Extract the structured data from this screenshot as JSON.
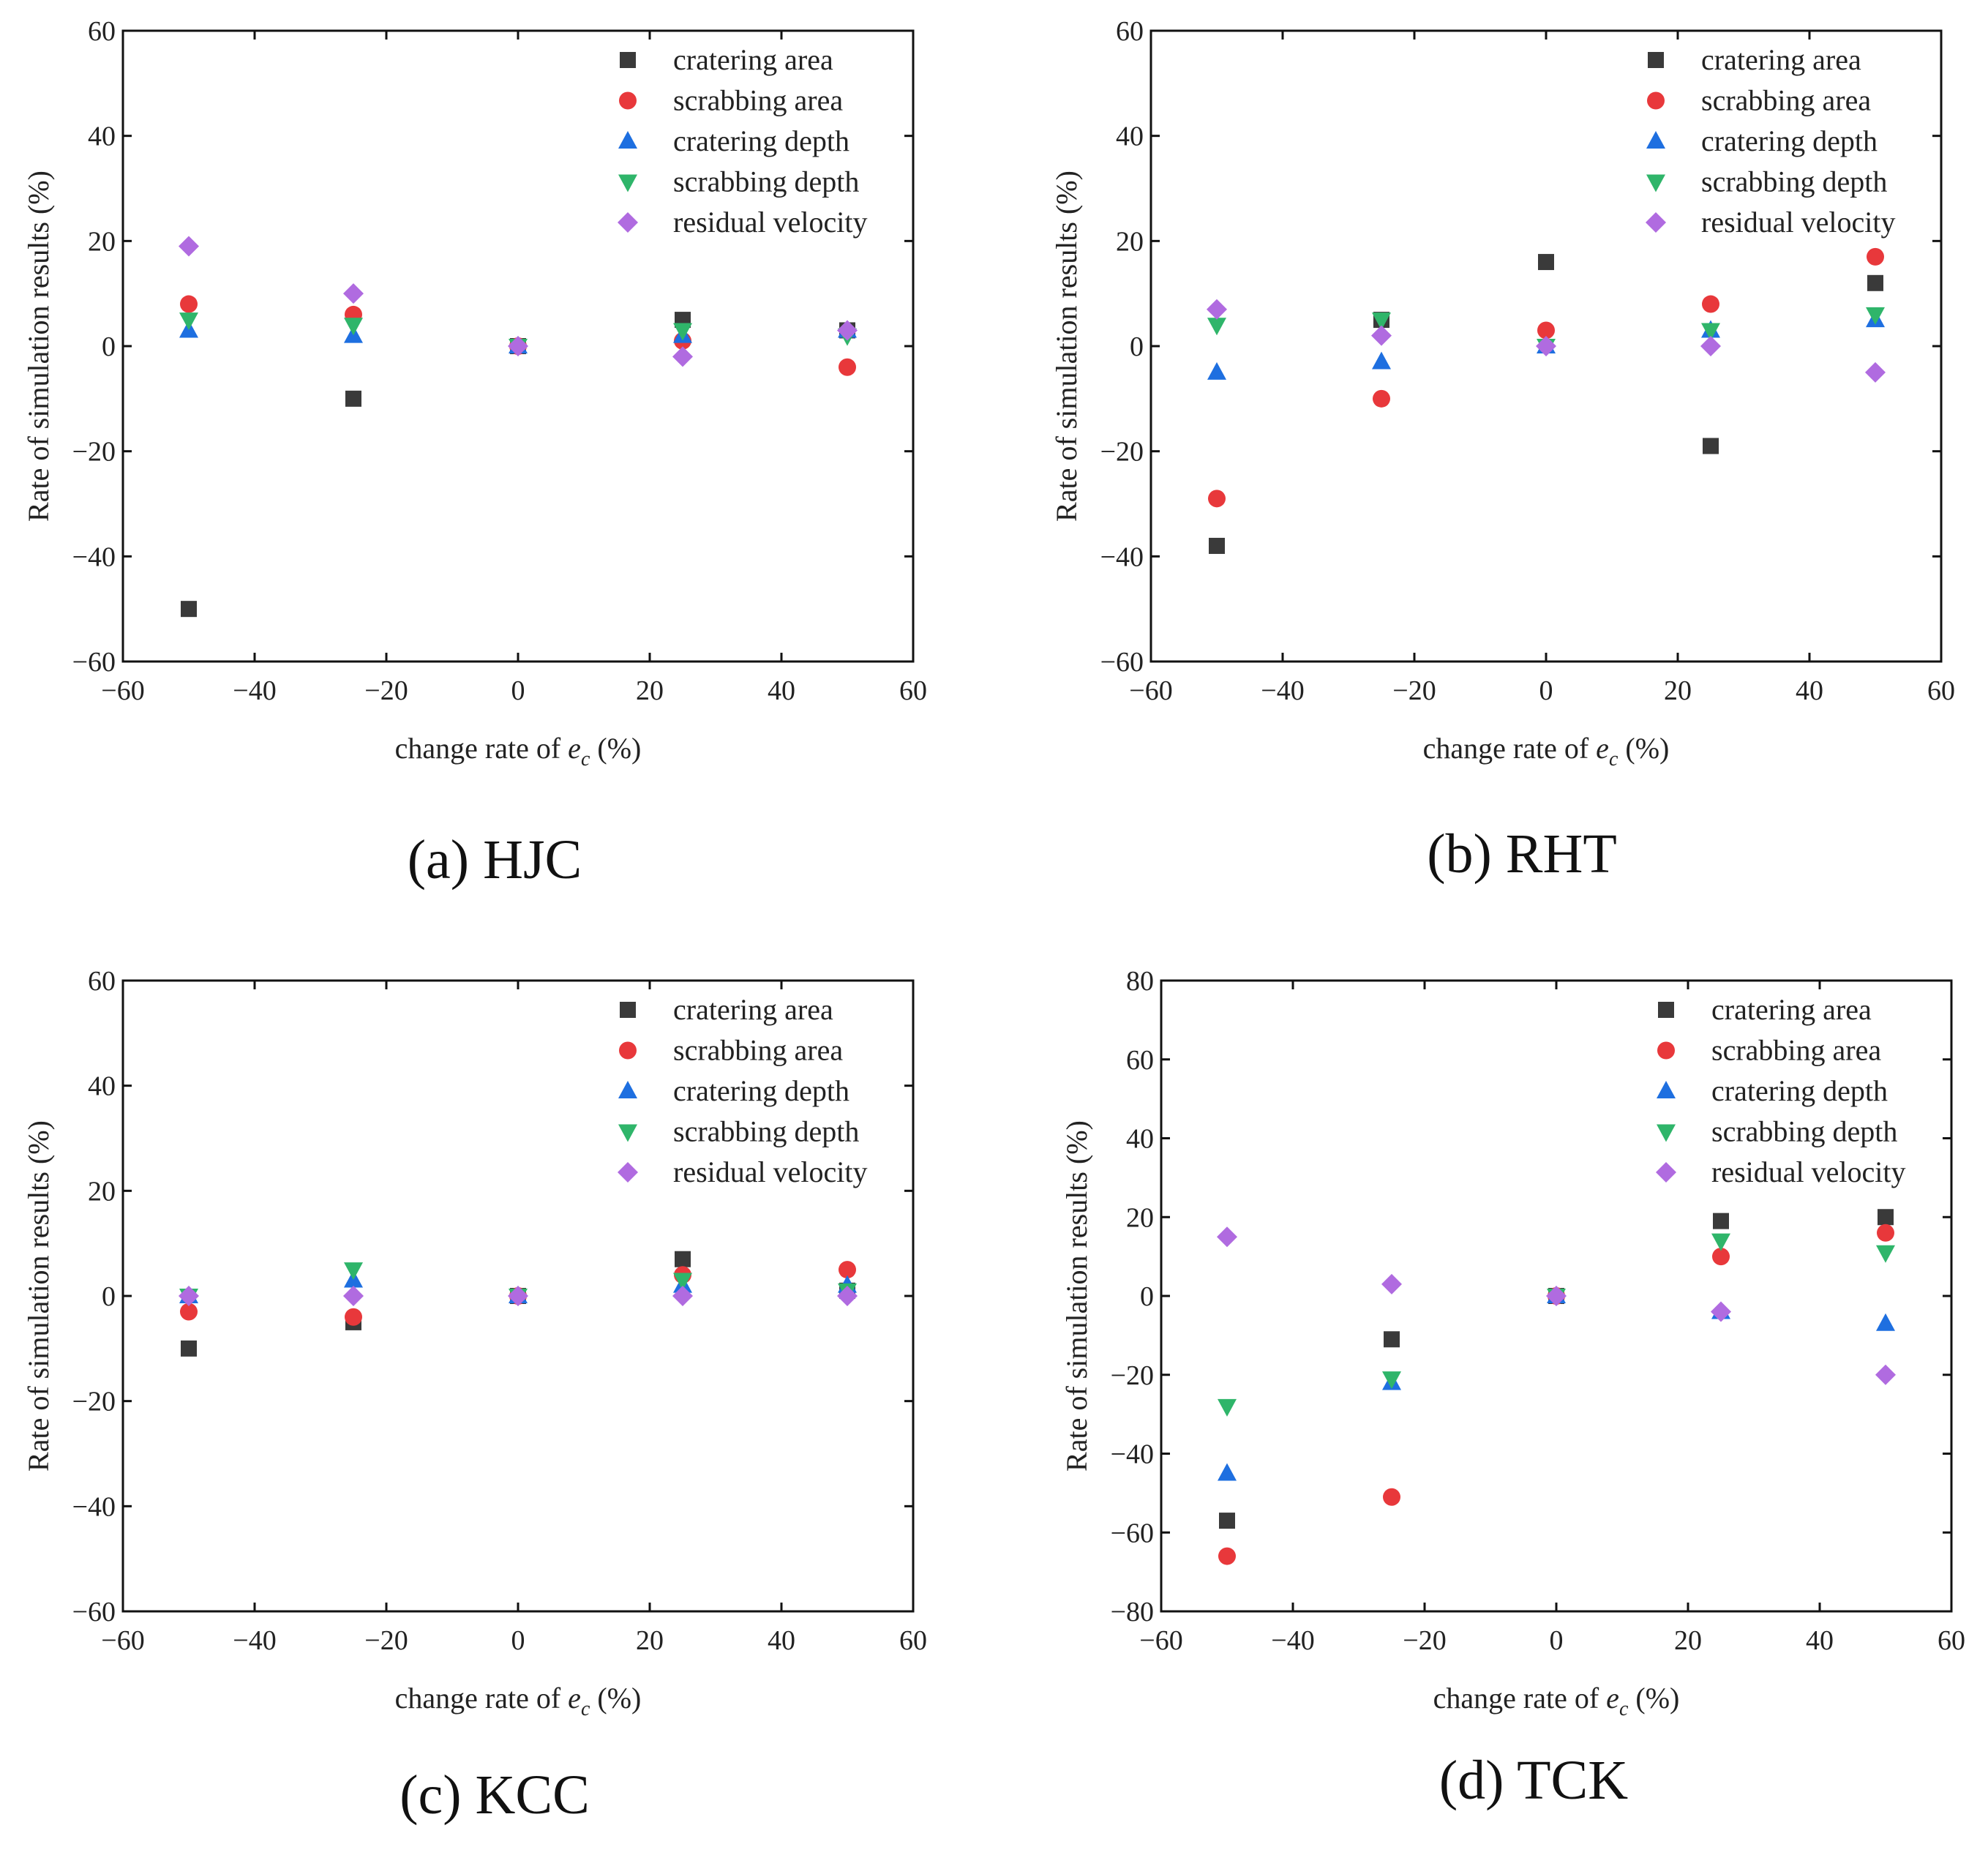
{
  "series_styles": [
    {
      "name": "cratering area",
      "color": "#3a3a3a",
      "marker": "square"
    },
    {
      "name": "scrabbing area",
      "color": "#e8383b",
      "marker": "circle"
    },
    {
      "name": "cratering depth",
      "color": "#1e6fe0",
      "marker": "triangle-up"
    },
    {
      "name": "scrabbing depth",
      "color": "#2fb56a",
      "marker": "triangle-down"
    },
    {
      "name": "residual velocity",
      "color": "#b06be0",
      "marker": "diamond"
    }
  ],
  "chart_data": [
    {
      "type": "scatter",
      "caption": "(a) HJC",
      "xlabel": {
        "prefix": "change rate of",
        "var": "e",
        "sub": "c",
        "suffix": "(%)"
      },
      "ylabel": "Rate of simulation results (%)",
      "xlim": [
        -60,
        60
      ],
      "ylim": [
        -60,
        60
      ],
      "xticks": [
        "−60",
        "−40",
        "−20",
        "0",
        "20",
        "40",
        "60"
      ],
      "xtick_values": [
        -60,
        -40,
        -20,
        0,
        20,
        40,
        60
      ],
      "yticks": [
        "60",
        "40",
        "20",
        "0",
        "−20",
        "−40",
        "−60"
      ],
      "ytick_values": [
        60,
        40,
        20,
        0,
        -20,
        -40,
        -60
      ],
      "legend_position": "top-right",
      "x": [
        -50,
        -25,
        0,
        25,
        50
      ],
      "series": [
        {
          "name": "cratering area",
          "values": [
            -50,
            -10,
            0,
            5,
            3
          ]
        },
        {
          "name": "scrabbing area",
          "values": [
            8,
            6,
            0,
            1,
            -4
          ]
        },
        {
          "name": "cratering depth",
          "values": [
            3,
            2,
            0,
            2,
            3
          ]
        },
        {
          "name": "scrabbing depth",
          "values": [
            5,
            4,
            0,
            3,
            2
          ]
        },
        {
          "name": "residual velocity",
          "values": [
            19,
            10,
            0,
            -2,
            3
          ]
        }
      ]
    },
    {
      "type": "scatter",
      "caption": "(b) RHT",
      "xlabel": {
        "prefix": "change rate of",
        "var": "e",
        "sub": "c",
        "suffix": "(%)"
      },
      "ylabel": "Rate of simulation results (%)",
      "xlim": [
        -60,
        60
      ],
      "ylim": [
        -60,
        60
      ],
      "xticks": [
        "−60",
        "−40",
        "−20",
        "0",
        "20",
        "40",
        "60"
      ],
      "xtick_values": [
        -60,
        -40,
        -20,
        0,
        20,
        40,
        60
      ],
      "yticks": [
        "60",
        "40",
        "20",
        "0",
        "−20",
        "−40",
        "−60"
      ],
      "ytick_values": [
        60,
        40,
        20,
        0,
        -20,
        -40,
        -60
      ],
      "legend_position": "top-right",
      "x": [
        -50,
        -25,
        0,
        25,
        50
      ],
      "series": [
        {
          "name": "cratering area",
          "values": [
            -38,
            5,
            16,
            -19,
            12
          ]
        },
        {
          "name": "scrabbing area",
          "values": [
            -29,
            -10,
            3,
            8,
            17
          ]
        },
        {
          "name": "cratering depth",
          "values": [
            -5,
            -3,
            0,
            3,
            5
          ]
        },
        {
          "name": "scrabbing depth",
          "values": [
            4,
            5,
            0,
            3,
            6
          ]
        },
        {
          "name": "residual velocity",
          "values": [
            7,
            2,
            0,
            0,
            -5
          ]
        }
      ]
    },
    {
      "type": "scatter",
      "caption": "(c) KCC",
      "xlabel": {
        "prefix": "change rate of",
        "var": "e",
        "sub": "c",
        "suffix": "(%)"
      },
      "ylabel": "Rate of simulation results (%)",
      "xlim": [
        -60,
        60
      ],
      "ylim": [
        -60,
        60
      ],
      "xticks": [
        "−60",
        "−40",
        "−20",
        "0",
        "20",
        "40",
        "60"
      ],
      "xtick_values": [
        -60,
        -40,
        -20,
        0,
        20,
        40,
        60
      ],
      "yticks": [
        "60",
        "40",
        "20",
        "0",
        "−20",
        "−40",
        "−60"
      ],
      "ytick_values": [
        60,
        40,
        20,
        0,
        -20,
        -40,
        -60
      ],
      "legend_position": "top-right",
      "x": [
        -50,
        -25,
        0,
        25,
        50
      ],
      "series": [
        {
          "name": "cratering area",
          "values": [
            -10,
            -5,
            0,
            7,
            1
          ]
        },
        {
          "name": "scrabbing area",
          "values": [
            -3,
            -4,
            0,
            4,
            5
          ]
        },
        {
          "name": "cratering depth",
          "values": [
            0,
            3,
            0,
            2,
            2
          ]
        },
        {
          "name": "scrabbing depth",
          "values": [
            0,
            5,
            0,
            3,
            1
          ]
        },
        {
          "name": "residual velocity",
          "values": [
            0,
            0,
            0,
            0,
            0
          ]
        }
      ]
    },
    {
      "type": "scatter",
      "caption": "(d) TCK",
      "xlabel": {
        "prefix": "change rate of",
        "var": "e",
        "sub": "c",
        "suffix": "(%)"
      },
      "ylabel": "Rate of simulation results (%)",
      "xlim": [
        -60,
        60
      ],
      "ylim": [
        -80,
        80
      ],
      "xticks": [
        "−60",
        "−40",
        "−20",
        "0",
        "20",
        "40",
        "60"
      ],
      "xtick_values": [
        -60,
        -40,
        -20,
        0,
        20,
        40,
        60
      ],
      "yticks": [
        "80",
        "60",
        "40",
        "20",
        "0",
        "−20",
        "−40",
        "−60",
        "−80"
      ],
      "ytick_values": [
        80,
        60,
        40,
        20,
        0,
        -20,
        -40,
        -60,
        -80
      ],
      "legend_position": "top-right",
      "x": [
        -50,
        -25,
        0,
        25,
        50
      ],
      "series": [
        {
          "name": "cratering area",
          "values": [
            -57,
            -11,
            0,
            19,
            20
          ]
        },
        {
          "name": "scrabbing area",
          "values": [
            -66,
            -51,
            0,
            10,
            16
          ]
        },
        {
          "name": "cratering depth",
          "values": [
            -45,
            -22,
            0,
            -4,
            -7
          ]
        },
        {
          "name": "scrabbing depth",
          "values": [
            -28,
            -21,
            0,
            14,
            11
          ]
        },
        {
          "name": "residual velocity",
          "values": [
            15,
            3,
            0,
            -4,
            -20
          ]
        }
      ]
    }
  ]
}
